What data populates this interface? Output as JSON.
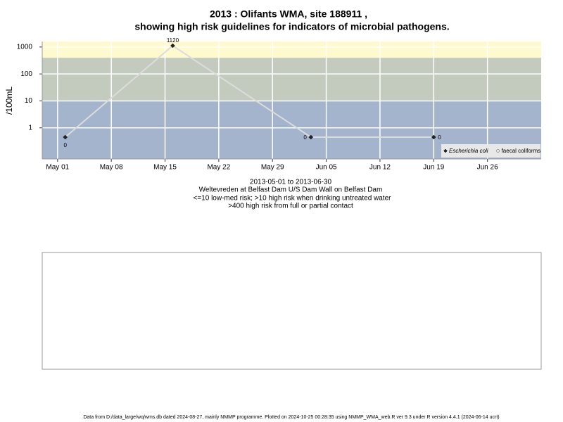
{
  "chart_data": {
    "type": "line",
    "title": "2013 : Olifants WMA, site 188911 ,",
    "subtitle": "showing high risk guidelines for indicators of microbial pathogens.",
    "ylabel": "/100mL",
    "caption": [
      "2013-05-01 to 2013-06-30",
      "Weltevreden at Belfast Dam U/S Dam Wall on Belfast Dam",
      "<=10 low-med risk; >10 high risk when drinking untreated water",
      ">400 high risk from full or partial contact"
    ],
    "footer": "Data from D:/data_large/wq/wms.db dated 2024-08-27, mainly NMMP programme. Plotted on 2024-10-25 00:28:35 using NMMP_WMA_web.R ver 9.3 under R version 4.4.1 (2024-06-14 ucrt)",
    "x": [
      "2013-05-02",
      "2013-05-16",
      "2013-06-03",
      "2013-06-19"
    ],
    "series": [
      {
        "name": "Escherichia coli",
        "color": "#222222",
        "line_color": "#dcdcdc",
        "values": [
          0.45,
          1120,
          0.45,
          0.45
        ],
        "value_labels": [
          "0",
          "1120",
          "0",
          "0"
        ]
      },
      {
        "name": "faecal coliforms",
        "color": "#ffffff",
        "line_color": "#dcdcdc",
        "values": [
          null,
          null,
          null,
          null
        ]
      }
    ],
    "xlim": [
      "2013-04-29",
      "2013-07-03"
    ],
    "xticks": [
      {
        "value": "2013-05-01",
        "label": "May 01"
      },
      {
        "value": "2013-05-08",
        "label": "May 08"
      },
      {
        "value": "2013-05-15",
        "label": "May 15"
      },
      {
        "value": "2013-05-22",
        "label": "May 22"
      },
      {
        "value": "2013-05-29",
        "label": "May 29"
      },
      {
        "value": "2013-06-05",
        "label": "Jun 05"
      },
      {
        "value": "2013-06-12",
        "label": "Jun 12"
      },
      {
        "value": "2013-06-19",
        "label": "Jun 19"
      },
      {
        "value": "2013-06-26",
        "label": "Jun 26"
      }
    ],
    "ylim": [
      0.07,
      1600
    ],
    "yticks": [
      1,
      10,
      100,
      1000
    ],
    "log_y": true,
    "grid": true,
    "legend": "bottom-right",
    "bands": [
      {
        "from": 0.07,
        "to": 10,
        "color": "#a3b4cc"
      },
      {
        "from": 10,
        "to": 400,
        "color": "#c3cbbe"
      },
      {
        "from": 400,
        "to": 1600,
        "color": "#fffacd"
      }
    ]
  }
}
